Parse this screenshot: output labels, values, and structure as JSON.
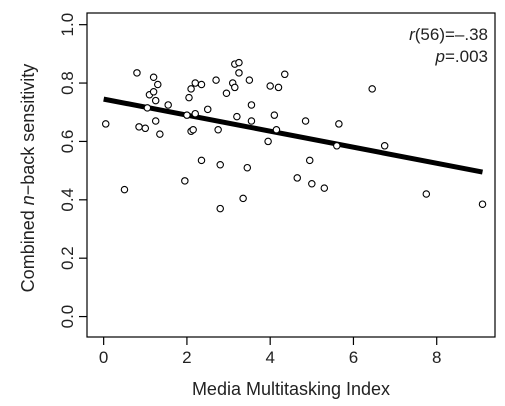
{
  "chart_data": {
    "type": "scatter",
    "title": "",
    "xlabel": "Media Multitasking Index",
    "ylabel_parts": [
      "Combined ",
      "n",
      "−back sensitivity"
    ],
    "xlim": [
      -0.4,
      9.4
    ],
    "ylim": [
      -0.07,
      1.04
    ],
    "xticks": [
      0,
      2,
      4,
      6,
      8
    ],
    "xtick_labels": [
      "0",
      "2",
      "4",
      "6",
      "8"
    ],
    "yticks": [
      0.0,
      0.2,
      0.4,
      0.6,
      0.8,
      1.0
    ],
    "ytick_labels": [
      "0.0",
      "0.2",
      "0.4",
      "0.6",
      "0.8",
      "1.0"
    ],
    "grid": false,
    "annotation": {
      "r_symbol": "r",
      "r_value": "(56)=–.38",
      "p_symbol": "p",
      "p_value": "=.003"
    },
    "trend_line": {
      "x": [
        0,
        9.1
      ],
      "y": [
        0.745,
        0.495
      ]
    },
    "points": [
      {
        "x": 0.05,
        "y": 0.66
      },
      {
        "x": 0.5,
        "y": 0.435
      },
      {
        "x": 0.8,
        "y": 0.835
      },
      {
        "x": 0.85,
        "y": 0.65
      },
      {
        "x": 1.0,
        "y": 0.645
      },
      {
        "x": 1.05,
        "y": 0.715
      },
      {
        "x": 1.1,
        "y": 0.76
      },
      {
        "x": 1.2,
        "y": 0.82
      },
      {
        "x": 1.2,
        "y": 0.77
      },
      {
        "x": 1.25,
        "y": 0.74
      },
      {
        "x": 1.25,
        "y": 0.67
      },
      {
        "x": 1.3,
        "y": 0.795
      },
      {
        "x": 1.35,
        "y": 0.625
      },
      {
        "x": 1.55,
        "y": 0.725
      },
      {
        "x": 1.95,
        "y": 0.465
      },
      {
        "x": 2.0,
        "y": 0.69
      },
      {
        "x": 2.05,
        "y": 0.75
      },
      {
        "x": 2.1,
        "y": 0.78
      },
      {
        "x": 2.1,
        "y": 0.635
      },
      {
        "x": 2.15,
        "y": 0.64
      },
      {
        "x": 2.2,
        "y": 0.695
      },
      {
        "x": 2.2,
        "y": 0.8
      },
      {
        "x": 2.35,
        "y": 0.795
      },
      {
        "x": 2.35,
        "y": 0.535
      },
      {
        "x": 2.5,
        "y": 0.71
      },
      {
        "x": 2.7,
        "y": 0.81
      },
      {
        "x": 2.75,
        "y": 0.64
      },
      {
        "x": 2.8,
        "y": 0.52
      },
      {
        "x": 2.8,
        "y": 0.37
      },
      {
        "x": 2.95,
        "y": 0.765
      },
      {
        "x": 3.1,
        "y": 0.8
      },
      {
        "x": 3.15,
        "y": 0.865
      },
      {
        "x": 3.15,
        "y": 0.785
      },
      {
        "x": 3.2,
        "y": 0.685
      },
      {
        "x": 3.25,
        "y": 0.87
      },
      {
        "x": 3.25,
        "y": 0.835
      },
      {
        "x": 3.35,
        "y": 0.405
      },
      {
        "x": 3.45,
        "y": 0.51
      },
      {
        "x": 3.5,
        "y": 0.81
      },
      {
        "x": 3.55,
        "y": 0.67
      },
      {
        "x": 3.55,
        "y": 0.725
      },
      {
        "x": 3.95,
        "y": 0.6
      },
      {
        "x": 4.0,
        "y": 0.79
      },
      {
        "x": 4.1,
        "y": 0.69
      },
      {
        "x": 4.15,
        "y": 0.64
      },
      {
        "x": 4.2,
        "y": 0.785
      },
      {
        "x": 4.35,
        "y": 0.83
      },
      {
        "x": 4.65,
        "y": 0.475
      },
      {
        "x": 4.85,
        "y": 0.67
      },
      {
        "x": 4.95,
        "y": 0.535
      },
      {
        "x": 5.0,
        "y": 0.455
      },
      {
        "x": 5.3,
        "y": 0.44
      },
      {
        "x": 5.6,
        "y": 0.585
      },
      {
        "x": 5.65,
        "y": 0.66
      },
      {
        "x": 6.45,
        "y": 0.78
      },
      {
        "x": 6.75,
        "y": 0.585
      },
      {
        "x": 7.75,
        "y": 0.42
      },
      {
        "x": 9.1,
        "y": 0.385
      }
    ]
  }
}
